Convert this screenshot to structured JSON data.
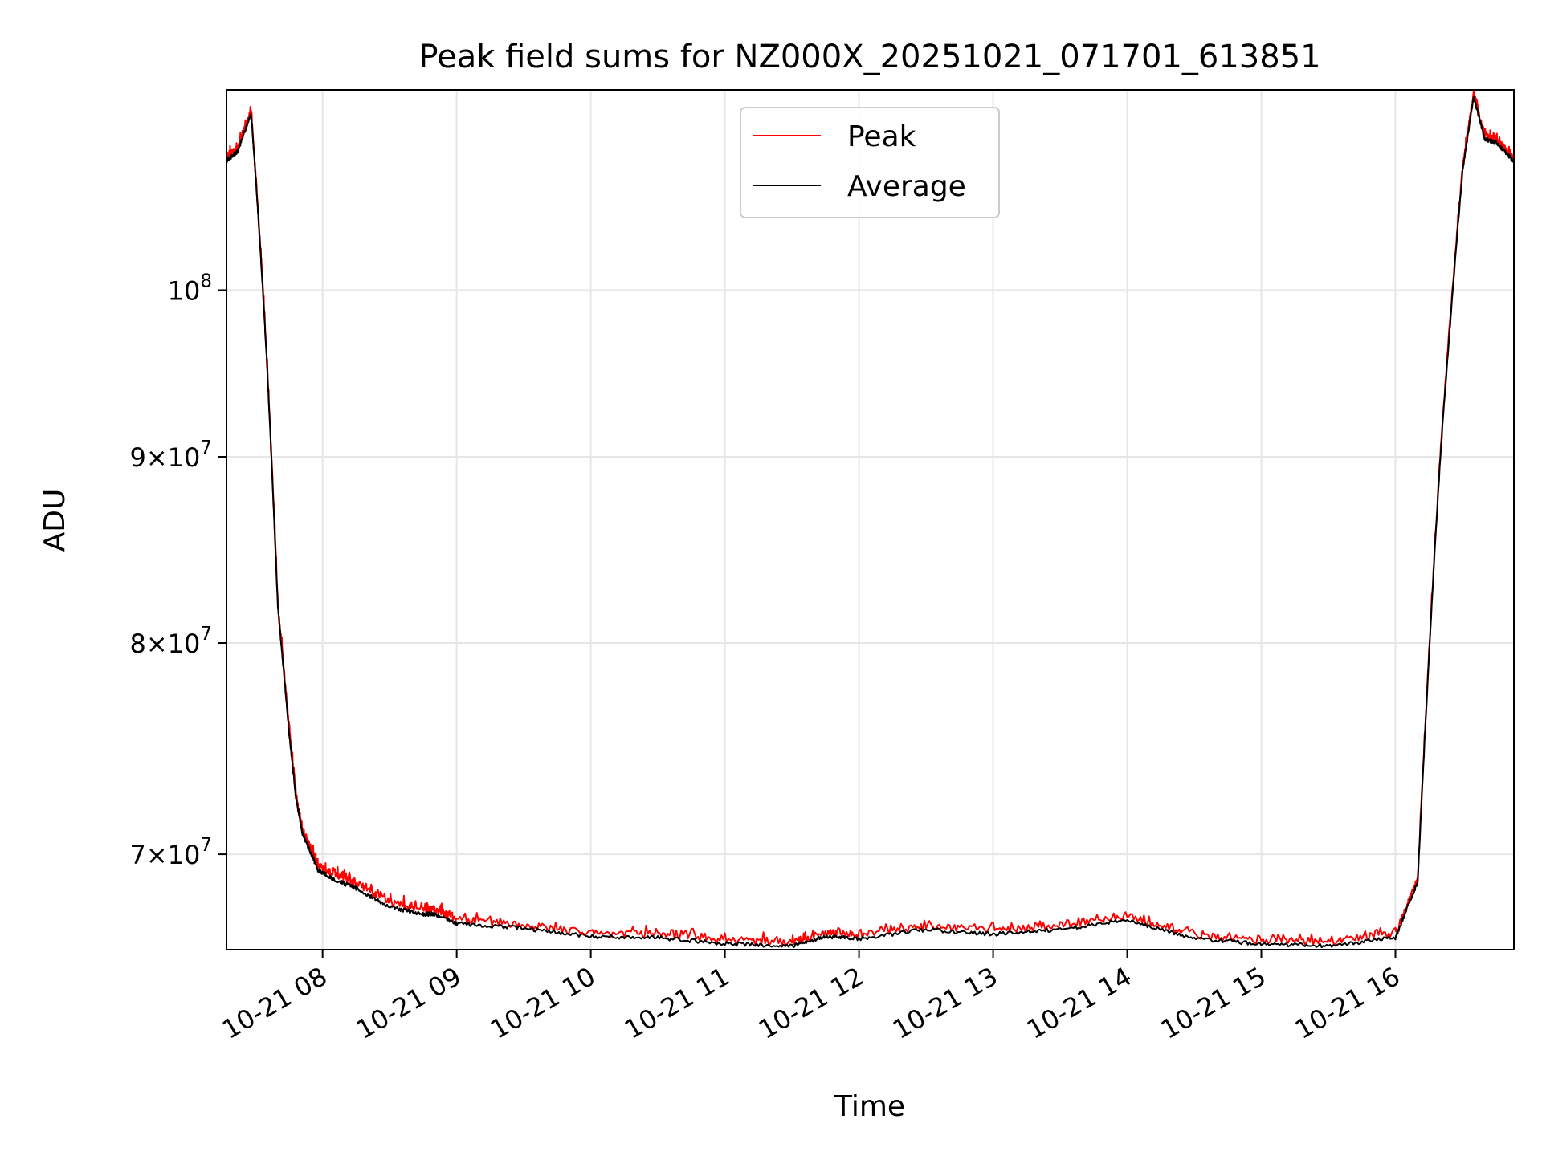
{
  "chart_data": {
    "type": "line",
    "title": "Peak field sums for NZ000X_20251021_071701_613851",
    "xlabel": "Time",
    "ylabel": "ADU",
    "y_scale": "log",
    "grid": true,
    "legend_position": "top-center",
    "x_range": [
      "2025-10-21 07:17",
      "2025-10-21 16:53"
    ],
    "y_range": [
      65900000,
      113500000
    ],
    "x_ticks": [
      {
        "value": "2025-10-21 08:00",
        "label": "10-21 08"
      },
      {
        "value": "2025-10-21 09:00",
        "label": "10-21 09"
      },
      {
        "value": "2025-10-21 10:00",
        "label": "10-21 10"
      },
      {
        "value": "2025-10-21 11:00",
        "label": "10-21 11"
      },
      {
        "value": "2025-10-21 12:00",
        "label": "10-21 12"
      },
      {
        "value": "2025-10-21 13:00",
        "label": "10-21 13"
      },
      {
        "value": "2025-10-21 14:00",
        "label": "10-21 14"
      },
      {
        "value": "2025-10-21 15:00",
        "label": "10-21 15"
      },
      {
        "value": "2025-10-21 16:00",
        "label": "10-21 16"
      }
    ],
    "y_ticks": [
      {
        "value": 70000000,
        "mantissa": "7",
        "exponent": "7",
        "times": true
      },
      {
        "value": 80000000,
        "mantissa": "8",
        "exponent": "7",
        "times": true
      },
      {
        "value": 90000000,
        "mantissa": "9",
        "exponent": "7",
        "times": true
      },
      {
        "value": 100000000,
        "mantissa": "10",
        "exponent": "8",
        "times": false
      }
    ],
    "series": [
      {
        "name": "Peak",
        "color": "#ff0000",
        "x": [
          "2025-10-21 07:17",
          "2025-10-21 07:22",
          "2025-10-21 07:28",
          "2025-10-21 07:31",
          "2025-10-21 07:35",
          "2025-10-21 07:40",
          "2025-10-21 07:45",
          "2025-10-21 07:48",
          "2025-10-21 07:51",
          "2025-10-21 07:55",
          "2025-10-21 07:58",
          "2025-10-21 08:05",
          "2025-10-21 08:15",
          "2025-10-21 08:30",
          "2025-10-21 08:45",
          "2025-10-21 08:50",
          "2025-10-21 09:00",
          "2025-10-21 09:30",
          "2025-10-21 10:00",
          "2025-10-21 10:30",
          "2025-10-21 11:00",
          "2025-10-21 11:30",
          "2025-10-21 11:45",
          "2025-10-21 12:00",
          "2025-10-21 12:30",
          "2025-10-21 13:00",
          "2025-10-21 13:30",
          "2025-10-21 14:00",
          "2025-10-21 14:30",
          "2025-10-21 15:00",
          "2025-10-21 15:30",
          "2025-10-21 16:00",
          "2025-10-21 16:10",
          "2025-10-21 16:20",
          "2025-10-21 16:30",
          "2025-10-21 16:35",
          "2025-10-21 16:40",
          "2025-10-21 16:45",
          "2025-10-21 16:53"
        ],
        "values": [
          108700000,
          109400000,
          112000000,
          105500000,
          96000000,
          82000000,
          75800000,
          72800000,
          71000000,
          70200000,
          69500000,
          69100000,
          68700000,
          67900000,
          67600000,
          67600000,
          67200000,
          66900000,
          66600000,
          66550000,
          66300000,
          66200000,
          66600000,
          66500000,
          66900000,
          66700000,
          66900000,
          67300000,
          66500000,
          66300000,
          66200000,
          66550000,
          68900000,
          90000000,
          108000000,
          113200000,
          110200000,
          110000000,
          108700000
        ]
      },
      {
        "name": "Average",
        "color": "#000000",
        "x": [
          "2025-10-21 07:17",
          "2025-10-21 07:22",
          "2025-10-21 07:28",
          "2025-10-21 07:31",
          "2025-10-21 07:35",
          "2025-10-21 07:40",
          "2025-10-21 07:45",
          "2025-10-21 07:48",
          "2025-10-21 07:51",
          "2025-10-21 07:55",
          "2025-10-21 07:58",
          "2025-10-21 08:05",
          "2025-10-21 08:15",
          "2025-10-21 08:30",
          "2025-10-21 08:45",
          "2025-10-21 08:50",
          "2025-10-21 09:00",
          "2025-10-21 09:30",
          "2025-10-21 10:00",
          "2025-10-21 10:30",
          "2025-10-21 11:00",
          "2025-10-21 11:30",
          "2025-10-21 11:45",
          "2025-10-21 12:00",
          "2025-10-21 12:30",
          "2025-10-21 13:00",
          "2025-10-21 13:30",
          "2025-10-21 14:00",
          "2025-10-21 14:30",
          "2025-10-21 15:00",
          "2025-10-21 15:30",
          "2025-10-21 16:00",
          "2025-10-21 16:10",
          "2025-10-21 16:20",
          "2025-10-21 16:30",
          "2025-10-21 16:35",
          "2025-10-21 16:40",
          "2025-10-21 16:45",
          "2025-10-21 16:53"
        ],
        "values": [
          108500000,
          109200000,
          111800000,
          105300000,
          95800000,
          81800000,
          75600000,
          72600000,
          70900000,
          70000000,
          69300000,
          68900000,
          68500000,
          67700000,
          67400000,
          67400000,
          67000000,
          66800000,
          66450000,
          66400000,
          66150000,
          66050000,
          66450000,
          66350000,
          66750000,
          66550000,
          66750000,
          67150000,
          66350000,
          66150000,
          66050000,
          66400000,
          68800000,
          89800000,
          107800000,
          113000000,
          110000000,
          109800000,
          108500000
        ]
      }
    ]
  }
}
